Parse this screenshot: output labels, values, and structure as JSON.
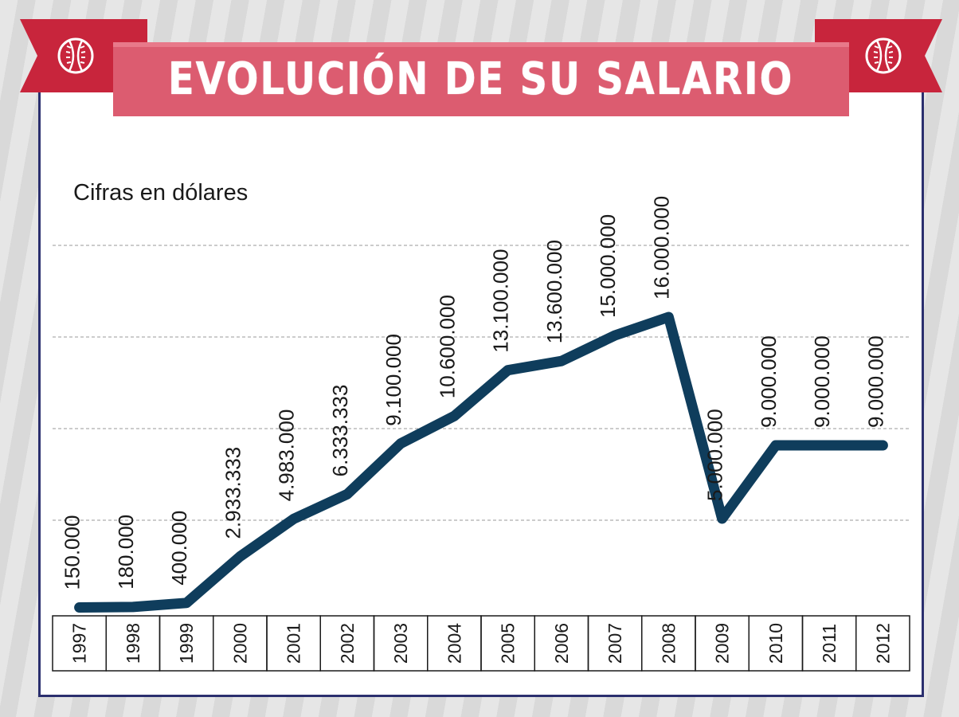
{
  "header": {
    "title": "EVOLUCIÓN DE SU SALARIO"
  },
  "colors": {
    "banner": "#dc5c70",
    "ribbon": "#c8253c",
    "line": "#0f3d5c",
    "frame": "#2b2f6e"
  },
  "icons": [
    "baseball-icon",
    "baseball-icon"
  ],
  "chart_data": {
    "type": "line",
    "title": "EVOLUCIÓN DE SU SALARIO",
    "subtitle": "Cifras en dólares",
    "xlabel": "",
    "ylabel": "",
    "ylim": [
      0,
      18000000
    ],
    "grid": true,
    "categories": [
      "1997",
      "1998",
      "1999",
      "2000",
      "2001",
      "2002",
      "2003",
      "2004",
      "2005",
      "2006",
      "2007",
      "2008",
      "2009",
      "2010",
      "2011",
      "2012"
    ],
    "series": [
      {
        "name": "Salario",
        "values": [
          150000,
          180000,
          400000,
          2933333,
          4983000,
          6333333,
          9100000,
          10600000,
          13100000,
          13600000,
          15000000,
          16000000,
          5000000,
          9000000,
          9000000,
          9000000
        ],
        "labels": [
          "150.000",
          "180.000",
          "400.000",
          "2.933.333",
          "4.983.000",
          "6.333.333",
          "9.100.000",
          "10.600.000",
          "13.100.000",
          "13.600.000",
          "15.000.000",
          "16.000.000",
          "5.000.000",
          "9.000.000",
          "9.000.000",
          "9.000.000"
        ]
      }
    ]
  }
}
